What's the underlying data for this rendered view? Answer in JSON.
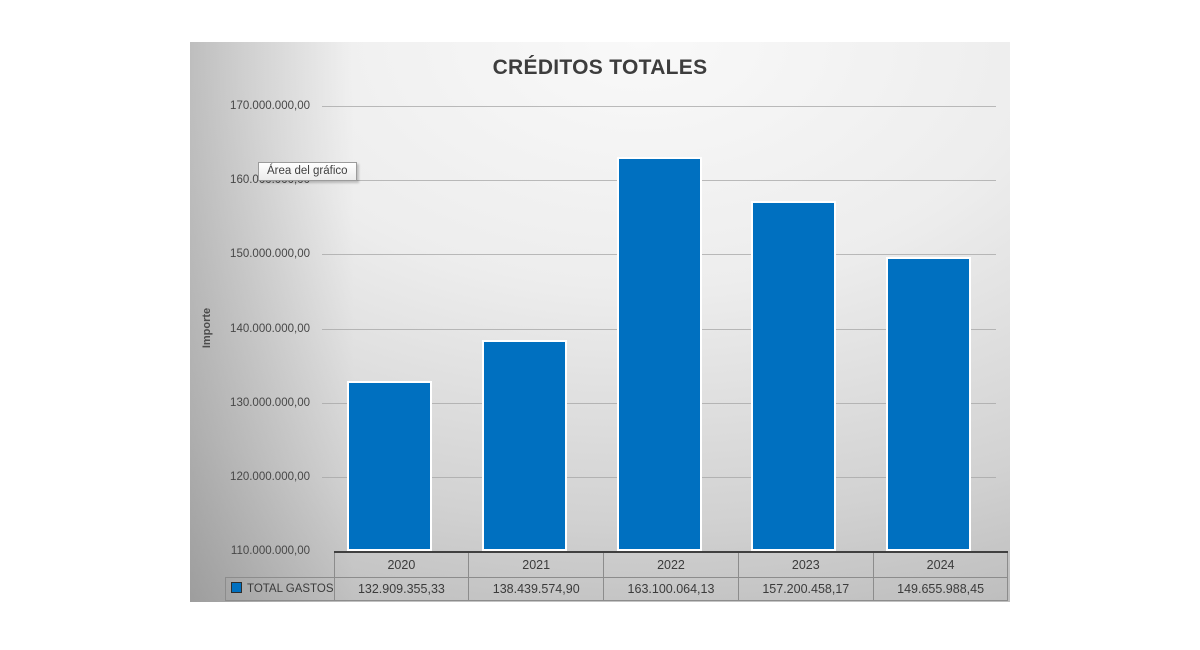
{
  "window": {
    "background": "#ffffff"
  },
  "chart": {
    "title": "CRÉDITOS TOTALES",
    "y_axis_title": "Importe",
    "tooltip": "Área del gráfico",
    "colors": {
      "bar": "#0070C0",
      "axis_line": "#404040",
      "grid_line": "#a6a6a6",
      "table_border": "#8c8c8c",
      "title_text": "#3d3d3d"
    }
  },
  "chart_data": {
    "type": "bar",
    "title": "CRÉDITOS TOTALES",
    "xlabel": "",
    "ylabel": "Importe",
    "categories": [
      "2020",
      "2021",
      "2022",
      "2023",
      "2024"
    ],
    "series": [
      {
        "name": "TOTAL GASTOS",
        "values": [
          132909355.33,
          138439574.9,
          163100064.13,
          157200458.17,
          149655988.45
        ],
        "formatted_values": [
          "132.909.355,33",
          "138.439.574,90",
          "163.100.064,13",
          "157.200.458,17",
          "149.655.988,45"
        ]
      }
    ],
    "ylim": [
      110000000,
      170000000
    ],
    "y_tick_step": 10000000,
    "y_tick_labels": [
      "170.000.000,00",
      "160.000.000,00",
      "150.000.000,00",
      "140.000.000,00",
      "130.000.000,00",
      "120.000.000,00",
      "110.000.000,00"
    ],
    "grid": true,
    "legend_position": "bottom-data-table"
  }
}
